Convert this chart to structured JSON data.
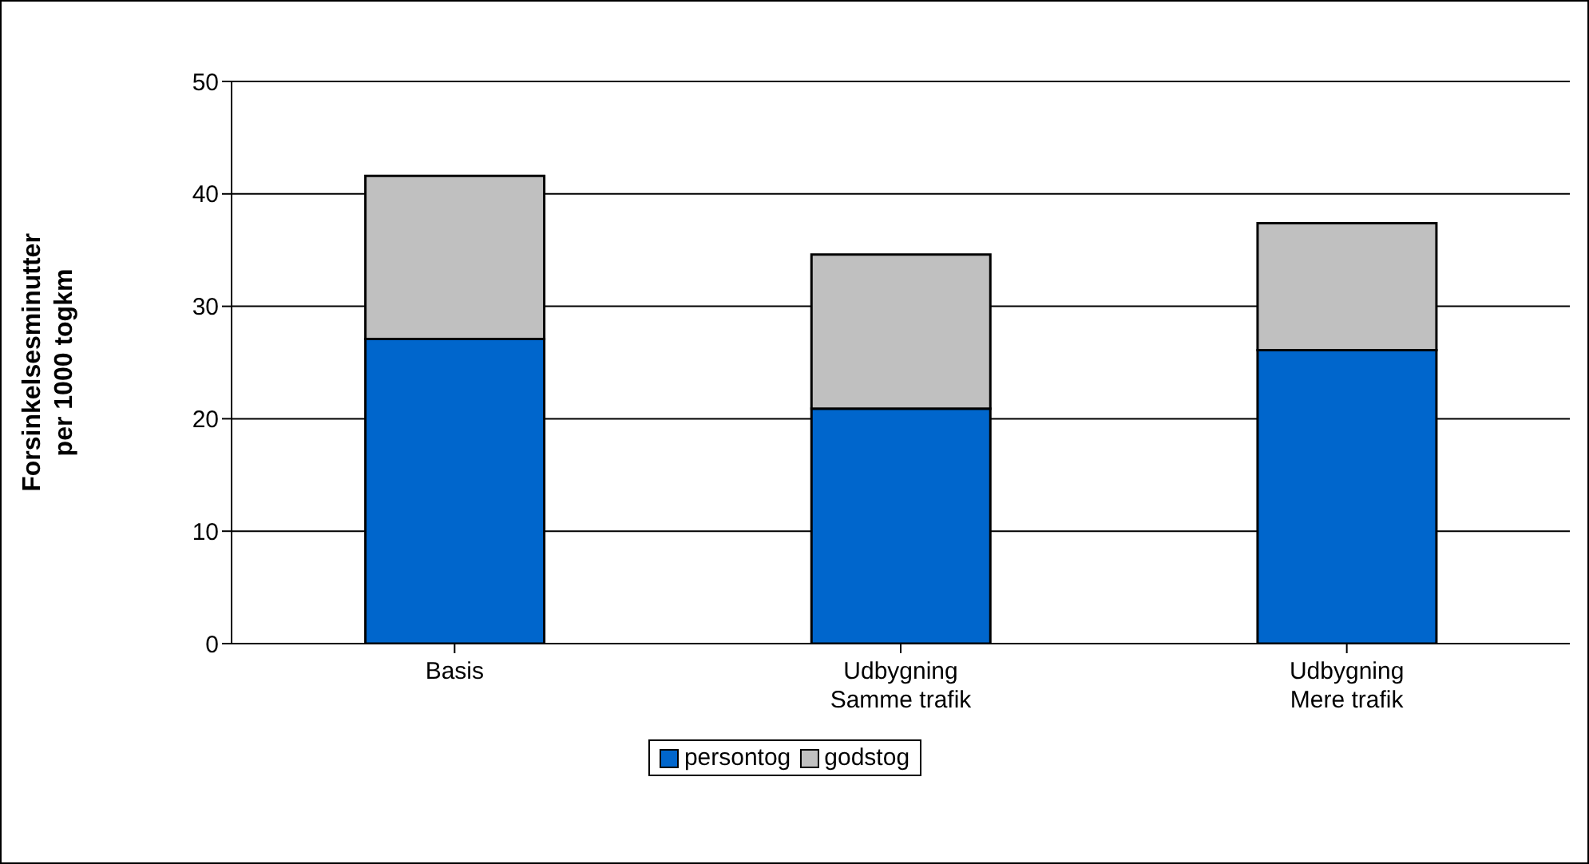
{
  "chart_data": {
    "type": "bar",
    "stacked": true,
    "ylabel": "Forsinkelsesminutter\nper 1000 togkm",
    "categories": [
      "Basis",
      "Udbygning\nSamme trafik",
      "Udbygning\nMere trafik"
    ],
    "series": [
      {
        "name": "persontog",
        "color": "#0066cc",
        "values": [
          27.1,
          20.9,
          26.1
        ]
      },
      {
        "name": "godstog",
        "color": "#c0c0c0",
        "values": [
          14.5,
          13.7,
          11.3
        ]
      }
    ],
    "ylim": [
      0,
      50
    ],
    "yticks": [
      0,
      10,
      20,
      30,
      40,
      50
    ],
    "grid": "y",
    "legend": "bottom"
  }
}
